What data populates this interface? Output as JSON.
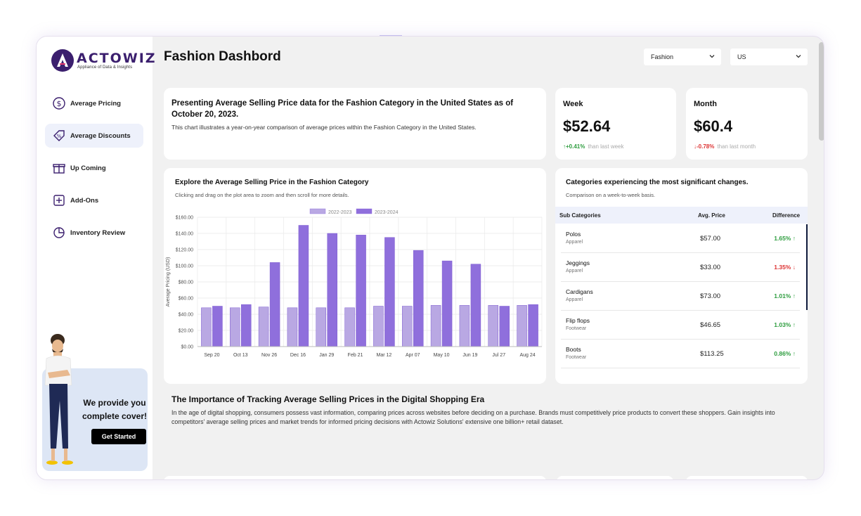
{
  "brand": {
    "name": "ACTOWIZ",
    "tagline": "Appliance of Data & Insights"
  },
  "sidebar": {
    "items": [
      {
        "label": "Average Pricing",
        "icon": "dollar-circle-icon"
      },
      {
        "label": "Average Discounts",
        "icon": "discount-tag-icon"
      },
      {
        "label": "Up Coming",
        "icon": "gift-icon"
      },
      {
        "label": "Add-Ons",
        "icon": "add-square-icon"
      },
      {
        "label": "Inventory Review",
        "icon": "pie-chart-icon"
      }
    ],
    "active_index": 1,
    "promo": {
      "text": "We provide you complete cover!",
      "button": "Get Started"
    }
  },
  "header": {
    "title": "Fashion Dashbord",
    "category_select": "Fashion",
    "country_select": "US"
  },
  "intro": {
    "title": "Presenting Average Selling Price data for the Fashion Category in the United States as of October 20, 2023.",
    "subtitle": "This chart illustrates a year-on-year comparison of average prices within the Fashion Category in the United States."
  },
  "stats": {
    "week": {
      "label": "Week",
      "value": "$52.64",
      "change": "+0.41%",
      "note": "than last week",
      "direction": "up"
    },
    "month": {
      "label": "Month",
      "value": "$60.4",
      "change": "-0.78%",
      "note": "than last month",
      "direction": "down"
    }
  },
  "chart_card": {
    "title": "Explore the Average Selling Price in the Fashion Category",
    "subtitle": "Clicking and drag on the plot area to zoom and then scroll for more details."
  },
  "chart_data": {
    "type": "bar",
    "categories": [
      "Sep 20",
      "Oct 13",
      "Nov 26",
      "Dec 16",
      "Jan 29",
      "Feb 21",
      "Mar 12",
      "Apr 07",
      "May 10",
      "Jun 19",
      "Jul 27",
      "Aug 24"
    ],
    "series": [
      {
        "name": "2022-2023",
        "color": "#b9a8e3",
        "values": [
          48,
          48,
          49,
          48,
          48,
          48,
          50,
          50,
          51,
          51,
          51,
          51
        ]
      },
      {
        "name": "2023-2024",
        "color": "#8f6fdc",
        "values": [
          50,
          52,
          104,
          150,
          140,
          138,
          135,
          119,
          106,
          102,
          50,
          52
        ]
      }
    ],
    "ylabel": "Average Pricing (USD)",
    "yticks": [
      "$0.00",
      "$20.00",
      "$40.00",
      "$60.00",
      "$80.00",
      "$100.00",
      "$120.00",
      "$140.00",
      "$160.00"
    ],
    "ylim": [
      0,
      160
    ],
    "grid": true,
    "legend": "top-center"
  },
  "categories_card": {
    "title": "Categories experiencing the most significant changes.",
    "subtitle": "Comparison on a week-to-week basis.",
    "headers": [
      "Sub Categories",
      "Avg. Price",
      "Difference"
    ],
    "rows": [
      {
        "name": "Polos",
        "category": "Apparel",
        "price": "$57.00",
        "diff": "1.65%",
        "direction": "up",
        "arrow": "↑"
      },
      {
        "name": "Jeggings",
        "category": "Apparel",
        "price": "$33.00",
        "diff": "1.35%",
        "direction": "down",
        "arrow": "↓"
      },
      {
        "name": "Cardigans",
        "category": "Apparel",
        "price": "$73.00",
        "diff": "1.01%",
        "direction": "up",
        "arrow": "↑"
      },
      {
        "name": "Flip flops",
        "category": "Footwear",
        "price": "$46.65",
        "diff": "1.03%",
        "direction": "up",
        "arrow": "↑"
      },
      {
        "name": "Boots",
        "category": "Footwear",
        "price": "$113.25",
        "diff": "0.86%",
        "direction": "up",
        "arrow": "↑"
      }
    ]
  },
  "importance": {
    "title": "The Importance of Tracking Average Selling Prices in the Digital Shopping Era",
    "text": "In the age of digital shopping, consumers possess vast information, comparing prices across websites before deciding on a purchase. Brands must competitively price products to convert these shoppers. Gain insights into competitors' average selling prices and market trends for informed pricing decisions with Actowiz Solutions' extensive one billion+ retail dataset."
  }
}
